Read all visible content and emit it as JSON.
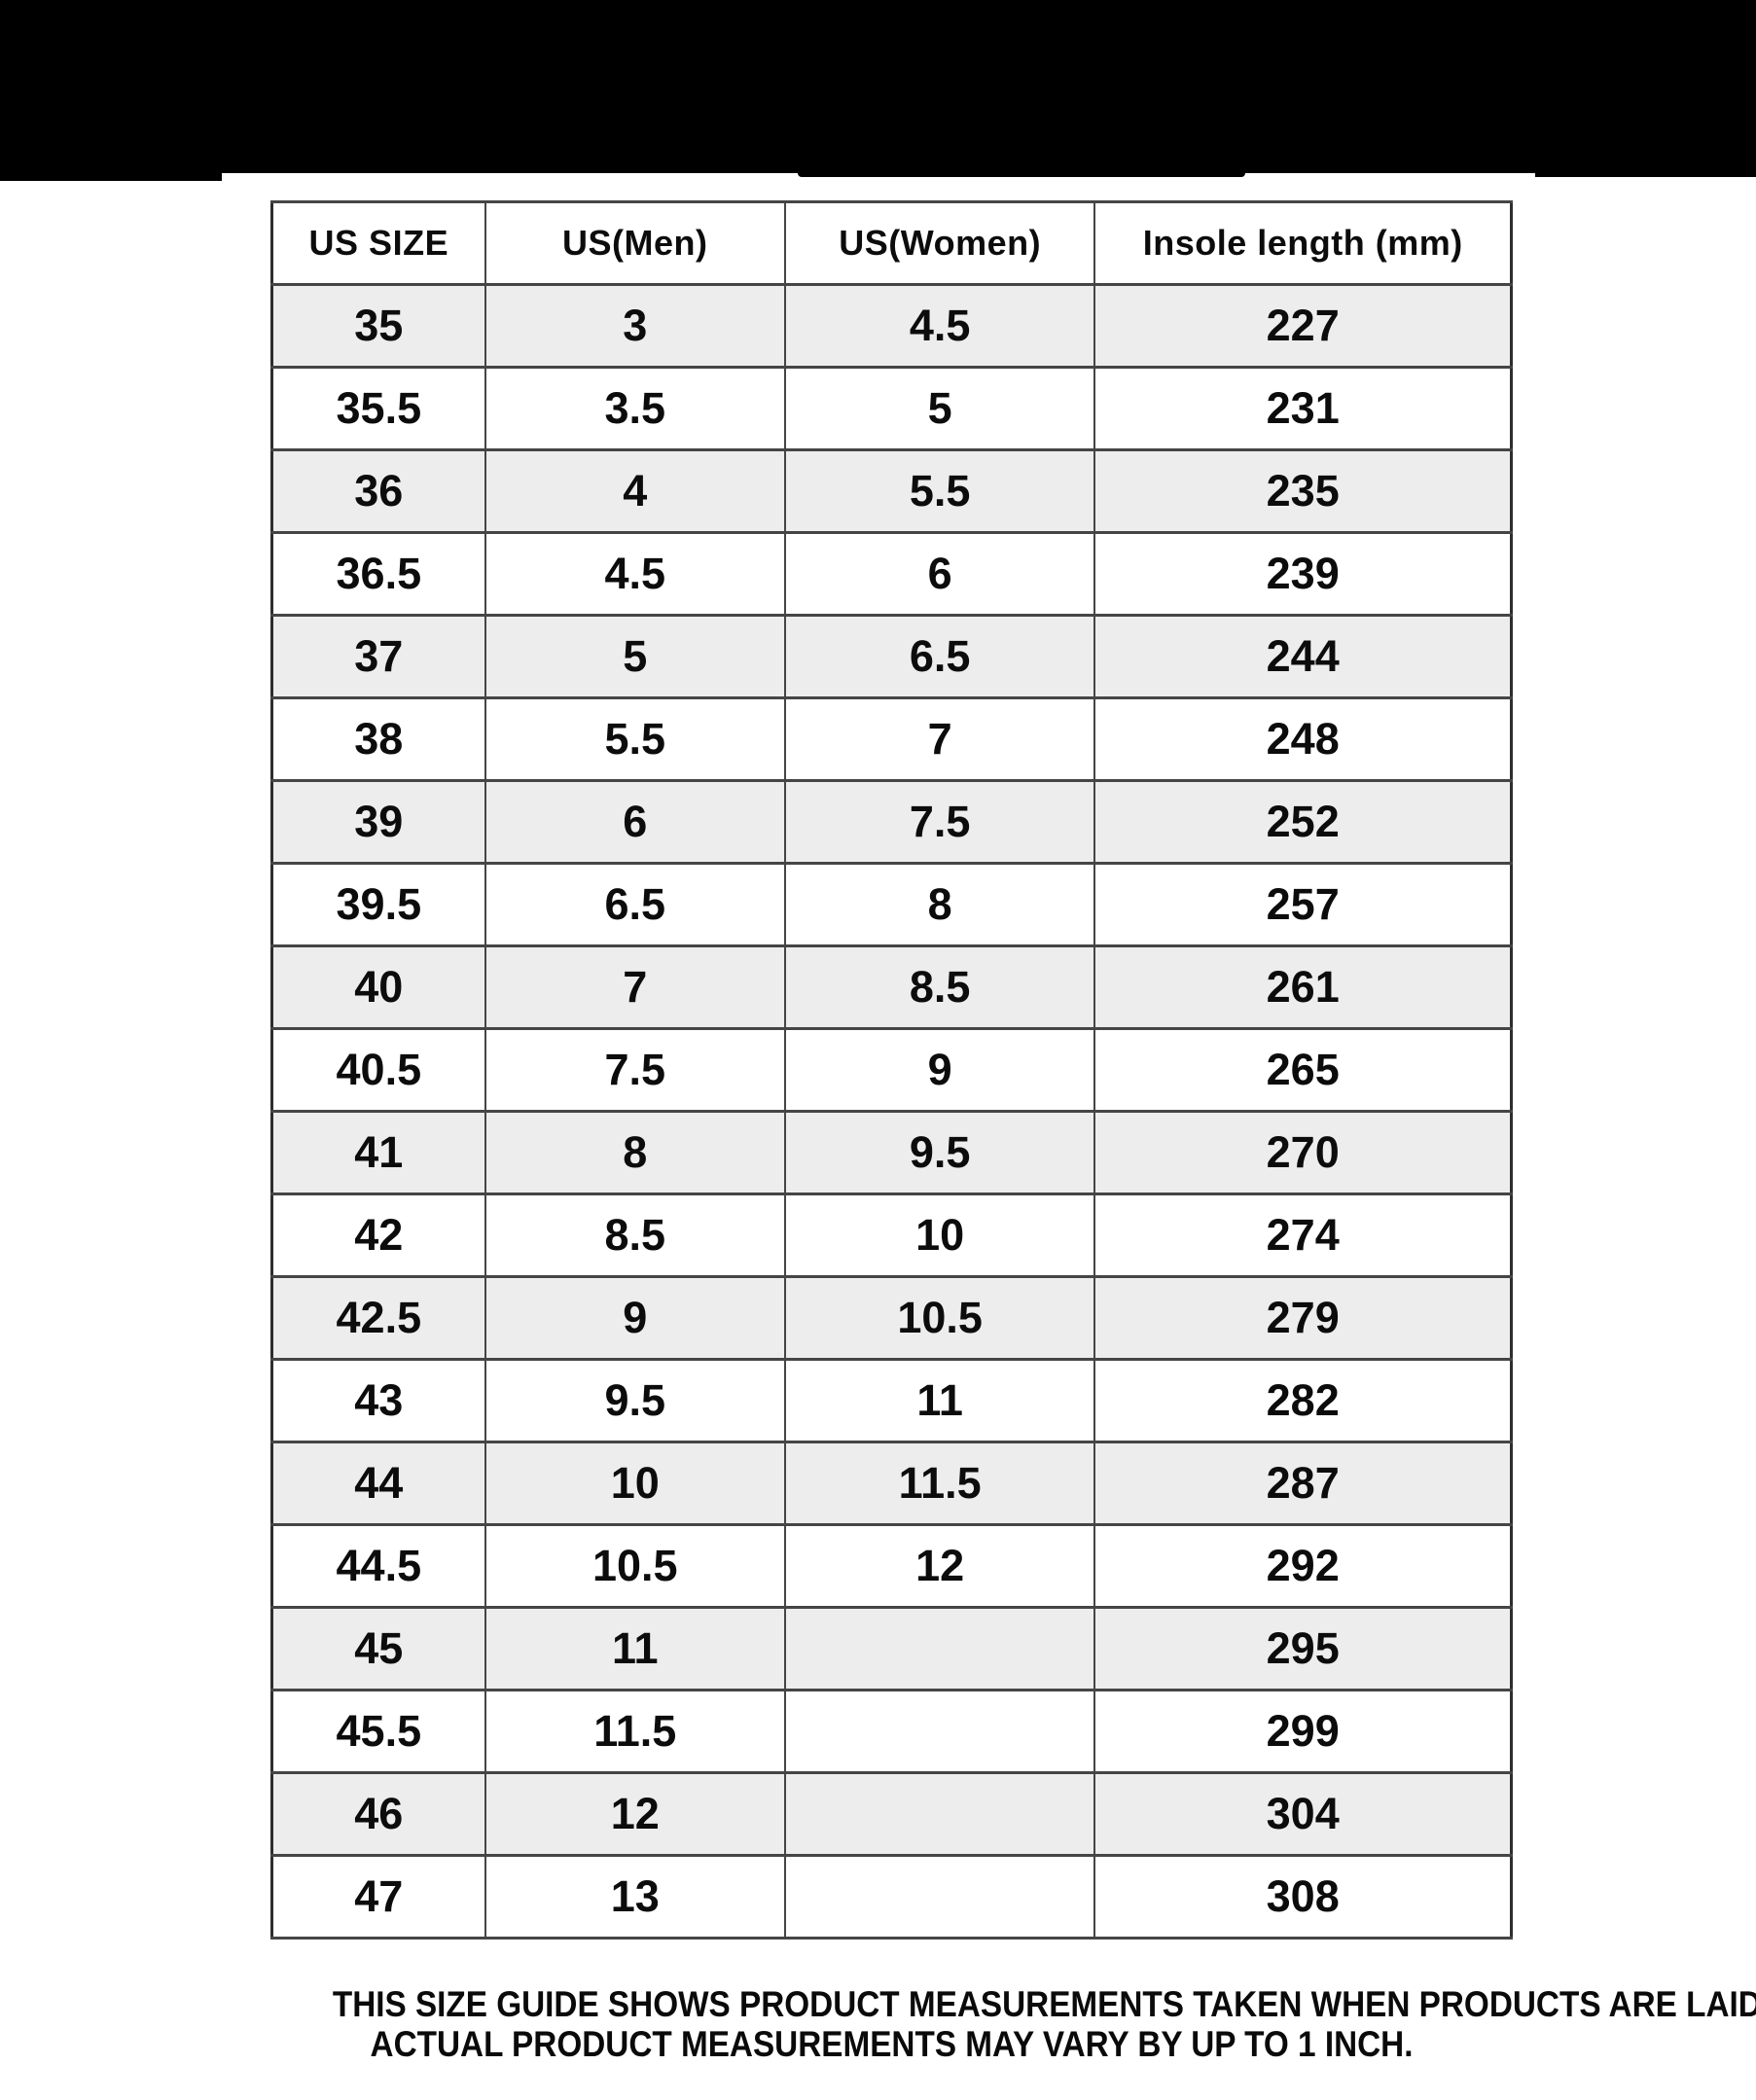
{
  "banner": {
    "color": "#000000"
  },
  "table": {
    "headers": [
      "US SIZE",
      "US(Men)",
      "US(Women)",
      "Insole length (mm)"
    ],
    "rows": [
      [
        "35",
        "3",
        "4.5",
        "227"
      ],
      [
        "35.5",
        "3.5",
        "5",
        "231"
      ],
      [
        "36",
        "4",
        "5.5",
        "235"
      ],
      [
        "36.5",
        "4.5",
        "6",
        "239"
      ],
      [
        "37",
        "5",
        "6.5",
        "244"
      ],
      [
        "38",
        "5.5",
        "7",
        "248"
      ],
      [
        "39",
        "6",
        "7.5",
        "252"
      ],
      [
        "39.5",
        "6.5",
        "8",
        "257"
      ],
      [
        "40",
        "7",
        "8.5",
        "261"
      ],
      [
        "40.5",
        "7.5",
        "9",
        "265"
      ],
      [
        "41",
        "8",
        "9.5",
        "270"
      ],
      [
        "42",
        "8.5",
        "10",
        "274"
      ],
      [
        "42.5",
        "9",
        "10.5",
        "279"
      ],
      [
        "43",
        "9.5",
        "11",
        "282"
      ],
      [
        "44",
        "10",
        "11.5",
        "287"
      ],
      [
        "44.5",
        "10.5",
        "12",
        "292"
      ],
      [
        "45",
        "11",
        "",
        "295"
      ],
      [
        "45.5",
        "11.5",
        "",
        "299"
      ],
      [
        "46",
        "12",
        "",
        "304"
      ],
      [
        "47",
        "13",
        "",
        "308"
      ]
    ],
    "stripe_color": "#ededed",
    "grid_color": "#454545"
  },
  "footer": {
    "line1": "THIS SIZE GUIDE SHOWS PRODUCT MEASUREMENTS TAKEN WHEN PRODUCTS ARE LAID",
    "line2": "ACTUAL PRODUCT MEASUREMENTS MAY VARY BY UP TO 1 INCH."
  }
}
